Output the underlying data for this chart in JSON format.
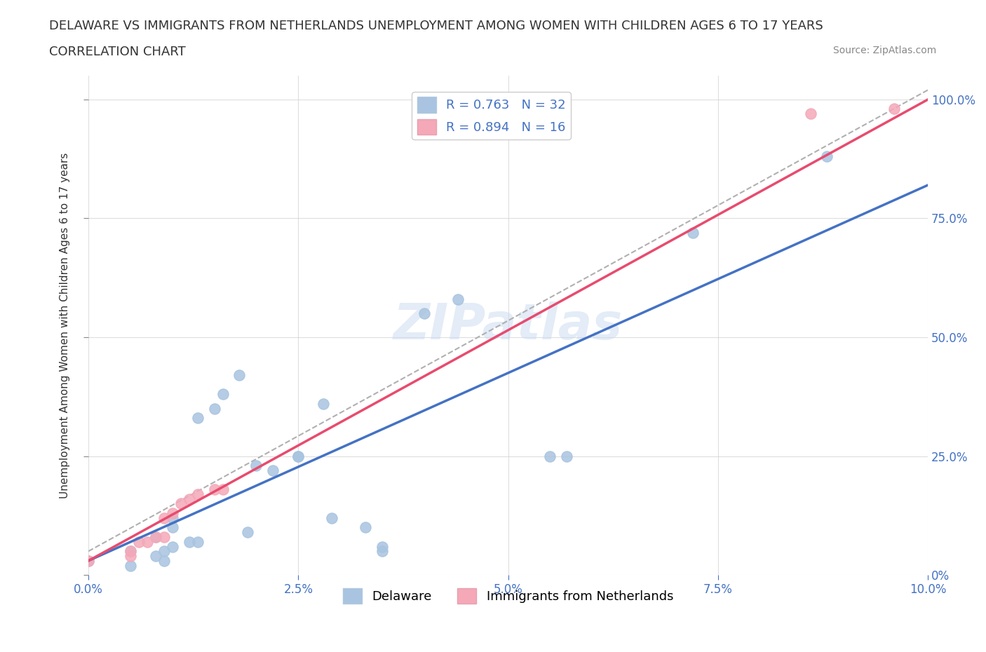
{
  "title_line1": "DELAWARE VS IMMIGRANTS FROM NETHERLANDS UNEMPLOYMENT AMONG WOMEN WITH CHILDREN AGES 6 TO 17 YEARS",
  "title_line2": "CORRELATION CHART",
  "source_text": "Source: ZipAtlas.com",
  "ylabel": "Unemployment Among Women with Children Ages 6 to 17 years",
  "xlim": [
    0.0,
    0.1
  ],
  "ylim": [
    0.0,
    1.05
  ],
  "xtick_labels": [
    "0.0%",
    "2.5%",
    "5.0%",
    "7.5%",
    "10.0%"
  ],
  "xtick_values": [
    0.0,
    0.025,
    0.05,
    0.075,
    0.1
  ],
  "ytick_labels": [
    "0%",
    "25.0%",
    "50.0%",
    "75.0%",
    "100.0%"
  ],
  "ytick_values": [
    0.0,
    0.25,
    0.5,
    0.75,
    1.0
  ],
  "delaware_color": "#a8c4e0",
  "netherlands_color": "#f4a8b8",
  "delaware_line_color": "#4472c4",
  "netherlands_line_color": "#e84b6e",
  "ref_line_color": "#b0b0b0",
  "delaware_R": 0.763,
  "delaware_N": 32,
  "netherlands_R": 0.894,
  "netherlands_N": 16,
  "watermark": "ZIPatlas",
  "background_color": "#ffffff",
  "delaware_scatter_x": [
    0.0,
    0.005,
    0.005,
    0.008,
    0.008,
    0.009,
    0.009,
    0.01,
    0.01,
    0.01,
    0.012,
    0.013,
    0.013,
    0.015,
    0.016,
    0.018,
    0.019,
    0.02,
    0.022,
    0.025,
    0.025,
    0.028,
    0.029,
    0.033,
    0.035,
    0.035,
    0.04,
    0.044,
    0.055,
    0.057,
    0.072,
    0.088
  ],
  "delaware_scatter_y": [
    0.03,
    0.02,
    0.05,
    0.04,
    0.08,
    0.03,
    0.05,
    0.06,
    0.1,
    0.12,
    0.07,
    0.07,
    0.33,
    0.35,
    0.38,
    0.42,
    0.09,
    0.23,
    0.22,
    0.25,
    0.25,
    0.36,
    0.12,
    0.1,
    0.05,
    0.06,
    0.55,
    0.58,
    0.25,
    0.25,
    0.72,
    0.88
  ],
  "netherlands_scatter_x": [
    0.0,
    0.005,
    0.005,
    0.006,
    0.007,
    0.008,
    0.009,
    0.009,
    0.01,
    0.011,
    0.012,
    0.013,
    0.015,
    0.016,
    0.086,
    0.096
  ],
  "netherlands_scatter_y": [
    0.03,
    0.04,
    0.05,
    0.07,
    0.07,
    0.08,
    0.08,
    0.12,
    0.13,
    0.15,
    0.16,
    0.17,
    0.18,
    0.18,
    0.97,
    0.98
  ],
  "delaware_trend_x": [
    0.0,
    0.1
  ],
  "delaware_trend_y": [
    0.03,
    0.82
  ],
  "netherlands_trend_x": [
    0.0,
    0.1
  ],
  "netherlands_trend_y": [
    0.03,
    1.0
  ],
  "ref_line_x": [
    0.0,
    0.1
  ],
  "ref_line_y": [
    0.05,
    1.02
  ]
}
